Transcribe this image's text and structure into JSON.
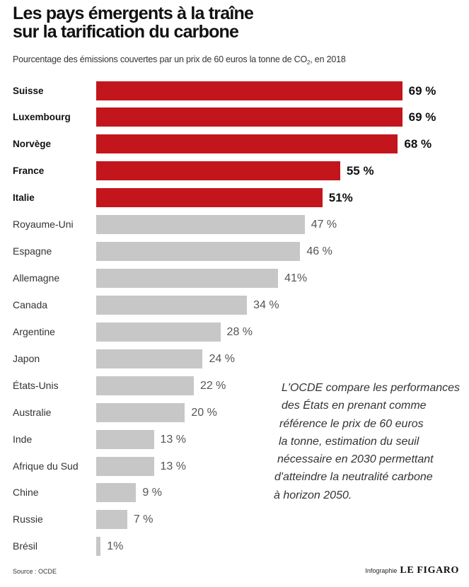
{
  "chart_data": {
    "type": "bar",
    "horizontal": true,
    "title": [
      "Les pays émergents à la traîne",
      "sur la tarification du carbone"
    ],
    "subtitle": {
      "text": "Pourcentage des émissions couvertes par un prix de 60 euros la tonne de CO",
      "subscript": "2",
      "suffix": ", en 2018"
    },
    "categories": [
      "Suisse",
      "Luxembourg",
      "Norvège",
      "France",
      "Italie",
      "Royaume-Uni",
      "Espagne",
      "Allemagne",
      "Canada",
      "Argentine",
      "Japon",
      "États-Unis",
      "Australie",
      "Inde",
      "Afrique du Sud",
      "Chine",
      "Russie",
      "Brésil"
    ],
    "values": [
      69,
      69,
      68,
      55,
      51,
      47,
      46,
      41,
      34,
      28,
      24,
      22,
      20,
      13,
      13,
      9,
      7,
      1
    ],
    "value_labels": [
      "69 %",
      "69 %",
      "68 %",
      "55 %",
      "51%",
      "47 %",
      "46 %",
      "41%",
      "34 %",
      "28 %",
      "24 %",
      "22 %",
      "20 %",
      "13 %",
      "13 %",
      "9 %",
      "7 %",
      "1%"
    ],
    "highlighted": [
      true,
      true,
      true,
      true,
      true,
      false,
      false,
      false,
      false,
      false,
      false,
      false,
      false,
      false,
      false,
      false,
      false,
      false
    ],
    "colors": {
      "highlight": "#c3161c",
      "default": "#c7c7c7"
    },
    "grid": false,
    "annotation": {
      "lines": [
        "L'OCDE compare les performances",
        "des États en prenant comme",
        "référence le prix de 60 euros",
        "la tonne, estimation du seuil",
        "nécessaire en 2030 permettant",
        "d'atteindre la neutralité carbone",
        "à horizon 2050."
      ]
    }
  },
  "footer": {
    "source": "Source : OCDE",
    "credit_prefix": "Infographie",
    "credit_brand": "LE FIGARO"
  }
}
